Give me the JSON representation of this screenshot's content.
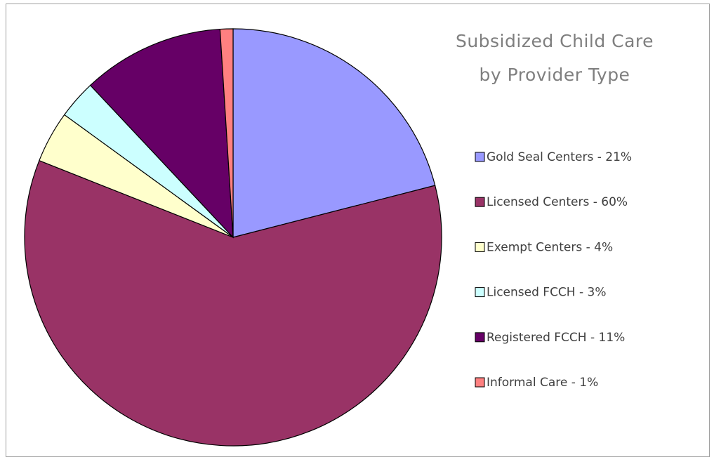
{
  "chart_data": {
    "type": "pie",
    "title": [
      "Subsidized Child Care",
      "by Provider Type"
    ],
    "categories": [
      "Gold Seal Centers - 21%",
      "Licensed Centers - 60%",
      "Exempt Centers - 4%",
      "Licensed FCCH - 3%",
      "Registered FCCH - 11%",
      "Informal Care - 1%"
    ],
    "values": [
      21,
      60,
      4,
      3,
      11,
      1
    ],
    "colors": [
      "#9999ff",
      "#993366",
      "#ffffcc",
      "#ccffff",
      "#660066",
      "#ff8080"
    ],
    "legend": "right"
  }
}
